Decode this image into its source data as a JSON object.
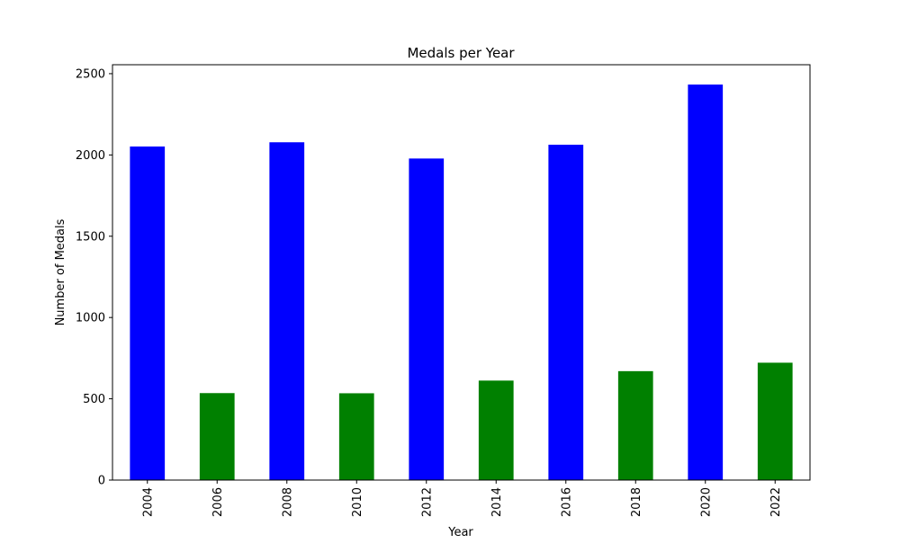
{
  "chart_data": {
    "type": "bar",
    "title": "Medals per Year",
    "xlabel": "Year",
    "ylabel": "Number of Medals",
    "categories": [
      "2004",
      "2006",
      "2008",
      "2010",
      "2012",
      "2014",
      "2016",
      "2018",
      "2020",
      "2022"
    ],
    "values": [
      2052,
      535,
      2078,
      534,
      1978,
      612,
      2063,
      670,
      2433,
      722
    ],
    "bar_colors": [
      "#0000ff",
      "#008000",
      "#0000ff",
      "#008000",
      "#0000ff",
      "#008000",
      "#0000ff",
      "#008000",
      "#0000ff",
      "#008000"
    ],
    "ylim": [
      0,
      2555
    ],
    "yticks": [
      0,
      500,
      1000,
      1500,
      2000,
      2500
    ],
    "ytick_labels": [
      "0",
      "500",
      "1000",
      "1500",
      "2000",
      "2500"
    ],
    "grid": false,
    "legend": false
  }
}
